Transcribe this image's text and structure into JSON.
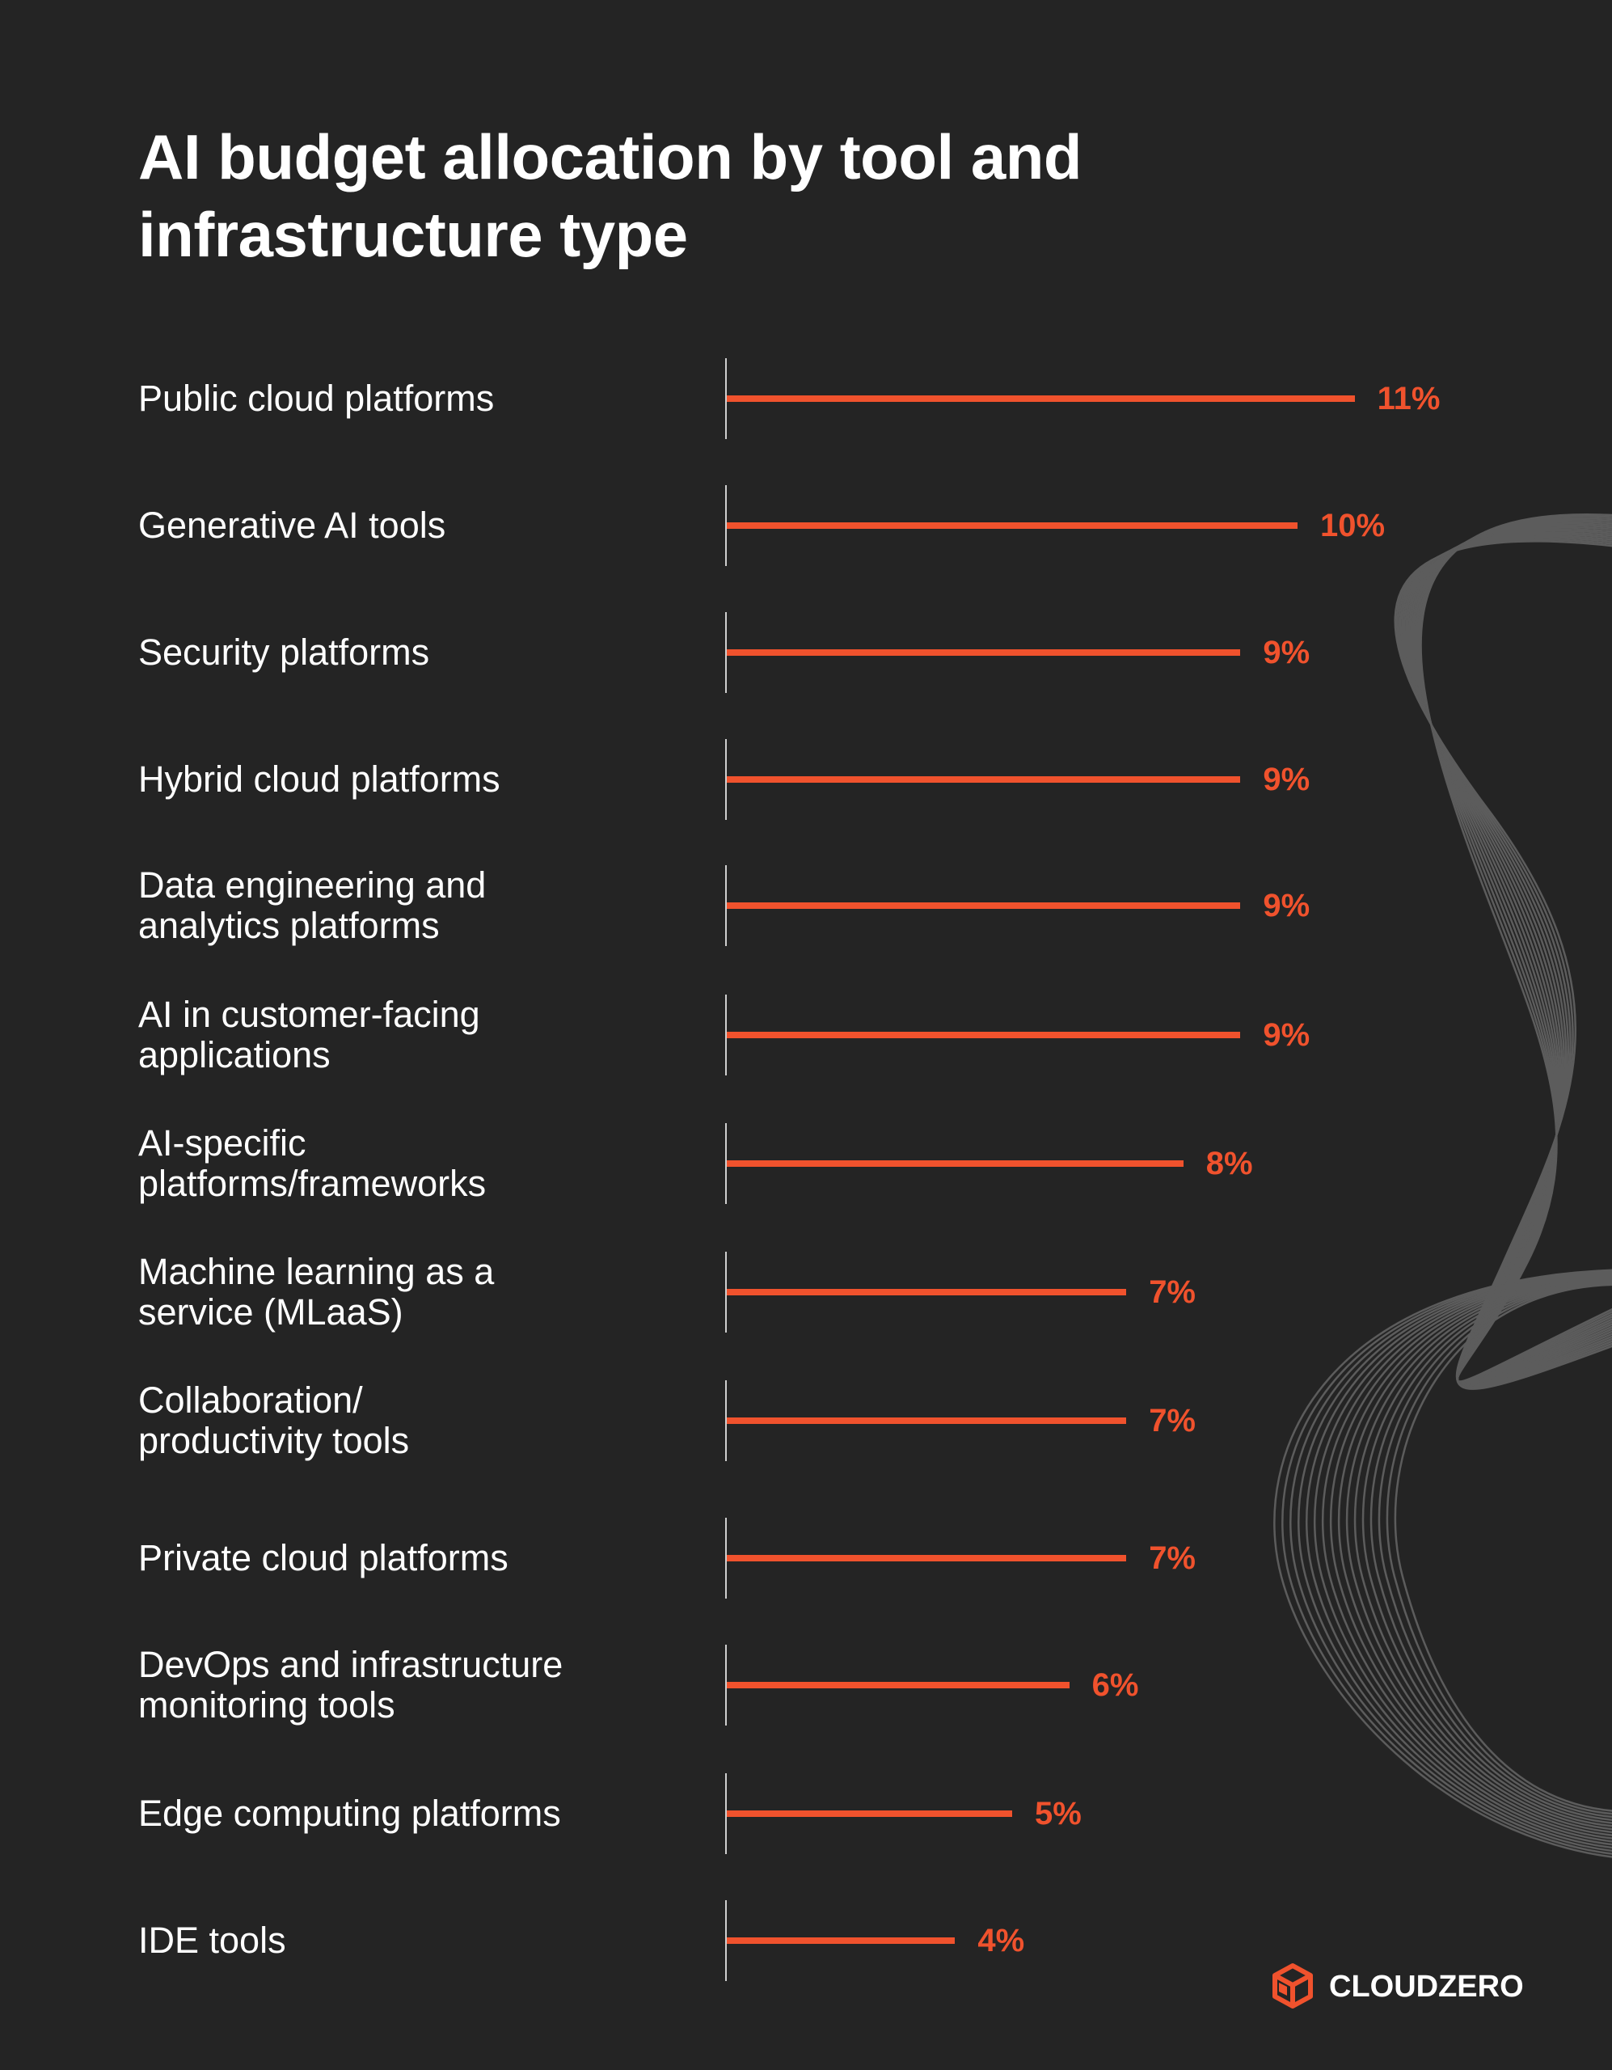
{
  "chart_data": {
    "type": "bar",
    "orientation": "horizontal",
    "title": "AI budget allocation by tool and infrastructure type",
    "categories": [
      "Public cloud platforms",
      "Generative AI tools",
      "Security platforms",
      "Hybrid cloud platforms",
      "Data engineering and\nanalytics platforms",
      "AI in customer-facing\napplications",
      "AI-specific\nplatforms/frameworks",
      "Machine learning as a\nservice (MLaaS)",
      "Collaboration/\nproductivity tools",
      "Private cloud platforms",
      "DevOps and infrastructure\nmonitoring tools",
      "Edge computing platforms",
      "IDE tools"
    ],
    "values": [
      11,
      10,
      9,
      9,
      9,
      9,
      8,
      7,
      7,
      7,
      6,
      5,
      4
    ],
    "value_labels": [
      "11%",
      "10%",
      "9%",
      "9%",
      "9%",
      "9%",
      "8%",
      "7%",
      "7%",
      "7%",
      "6%",
      "5%",
      "4%"
    ],
    "unit": "%",
    "bar_color": "#f0522d",
    "background_color": "#242424",
    "grid": false,
    "legend": "none"
  },
  "brand": {
    "logo_text": "CLOUDZERO",
    "logo_icon": "cloudzero-cube-icon",
    "accent_color": "#f0522d"
  }
}
